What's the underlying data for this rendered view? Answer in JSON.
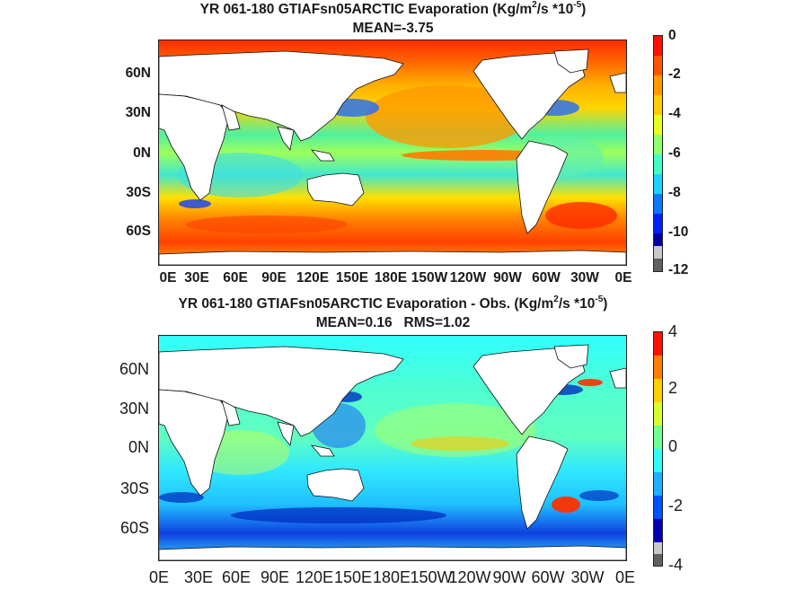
{
  "panels": [
    {
      "title_prefix": "YR 061-180 GTIAFsn05ARCTIC  Evaporation (Kg/m",
      "title_sup1": "2",
      "title_mid": "/s *10",
      "title_sup2": "-5",
      "title_suffix": ")",
      "subtitle": "MEAN=-3.75",
      "lat_labels": [
        "60N",
        "30N",
        "0N",
        "30S",
        "60S"
      ],
      "lon_labels": [
        "0E",
        "30E",
        "60E",
        "90E",
        "120E",
        "150E",
        "180E",
        "150W",
        "120W",
        "90W",
        "60W",
        "30W",
        "0E"
      ],
      "colorbar_labels": [
        "0",
        "-2",
        "-4",
        "-6",
        "-8",
        "-10",
        "-12"
      ],
      "colorbar_range": [
        -12,
        0
      ]
    },
    {
      "title_prefix": "YR 061-180 GTIAFsn05ARCTIC Evaporation - Obs. (Kg/m",
      "title_sup1": "2",
      "title_mid": "/s *10",
      "title_sup2": "-5",
      "title_suffix": ")",
      "subtitle": "MEAN=0.16   RMS=1.02",
      "lat_labels": [
        "60N",
        "30N",
        "0N",
        "30S",
        "60S"
      ],
      "lon_labels": [
        "0E",
        "30E",
        "60E",
        "90E",
        "120E",
        "150E",
        "180E",
        "150W",
        "120W",
        "90W",
        "60W",
        "30W",
        "0E"
      ],
      "colorbar_labels": [
        "4",
        "2",
        "0",
        "-2",
        "-4"
      ],
      "colorbar_range": [
        -4,
        4
      ]
    }
  ],
  "colors": {
    "land": "#ffffff",
    "panel1_ocean": [
      "#ff2a00",
      "#ff8a00",
      "#ffd400",
      "#b8ff48",
      "#30ffcc",
      "#1fb4ff",
      "#0038ff",
      "#000080"
    ],
    "panel2_ocean": [
      "#ff3000",
      "#ffd000",
      "#b8ff48",
      "#30ffff",
      "#1aa8ff",
      "#0030e0",
      "#00006a"
    ]
  }
}
